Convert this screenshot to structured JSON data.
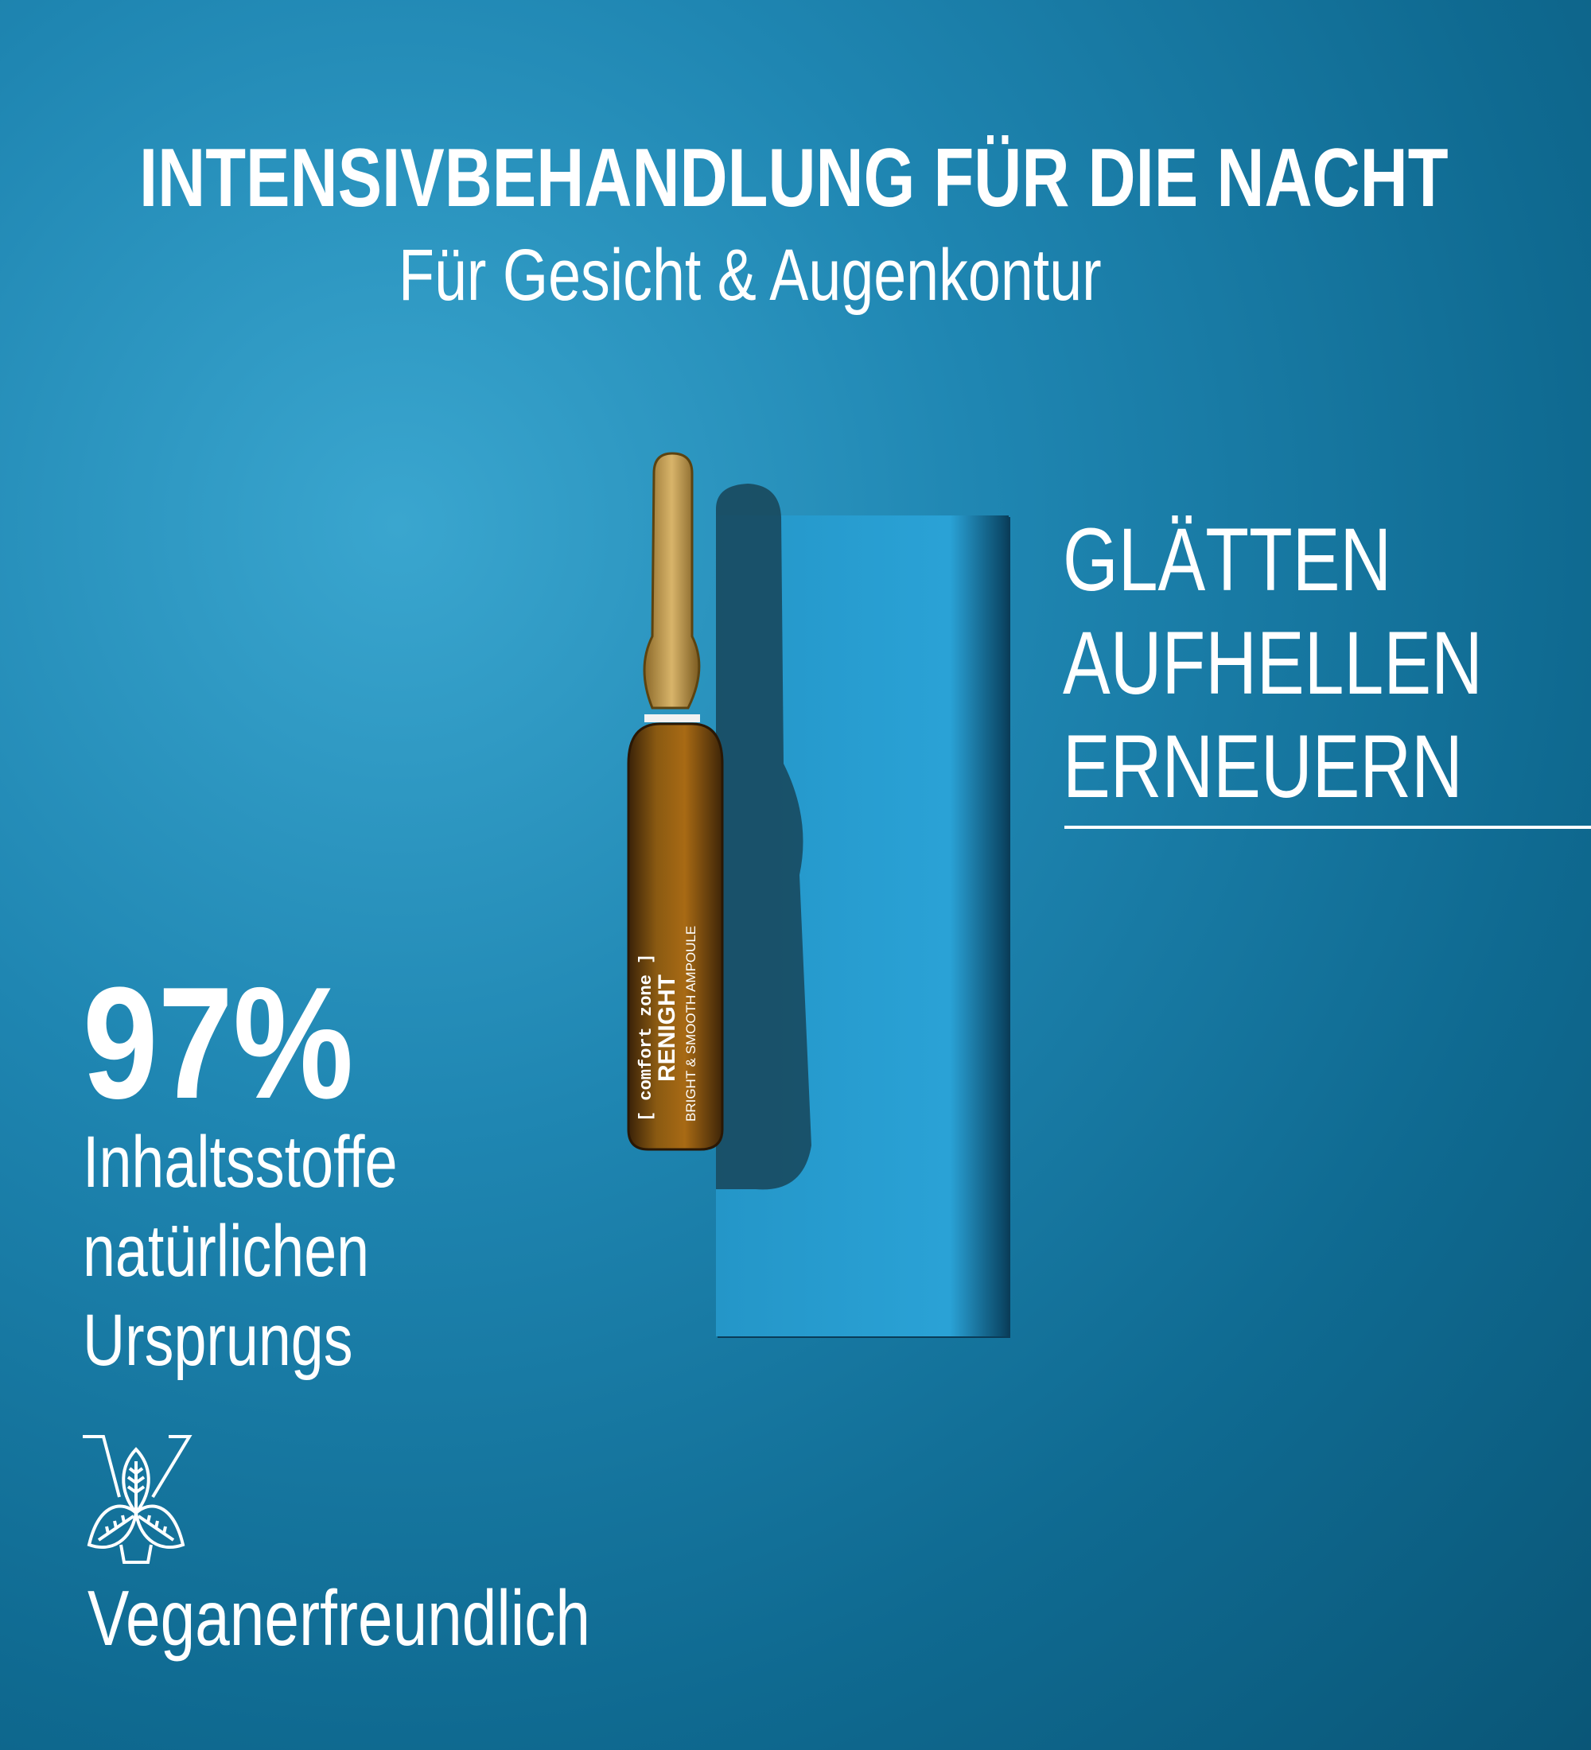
{
  "header": {
    "title": "INTENSIVBEHANDLUNG FÜR DIE NACHT",
    "subtitle": "Für Gesicht & Augenkontur"
  },
  "claims": [
    "GLÄTTEN",
    "AUFHELLEN",
    "ERNEUERN"
  ],
  "stat": {
    "value": "97%",
    "lines": [
      "Inhaltsstoffe",
      "natürlichen",
      "Ursprungs"
    ]
  },
  "badge": {
    "icon": "vegan-leaf-v-icon",
    "label": "Veganerfreundlich"
  },
  "product": {
    "brand": "[ comfort zone ]",
    "name": "RENIGHT",
    "description": "BRIGHT & SMOOTH AMPOULE"
  },
  "colors": {
    "background": "#1a7fab",
    "text": "#ffffff",
    "ampoule": "#8a5a12"
  }
}
